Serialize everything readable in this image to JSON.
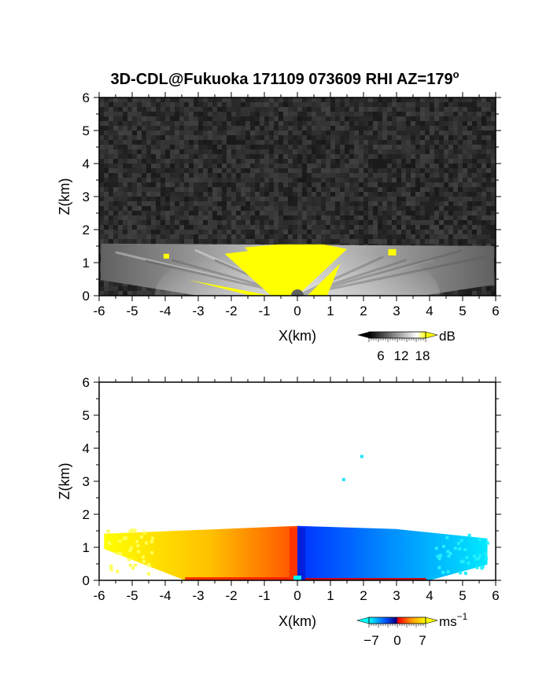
{
  "chart_data": [
    {
      "type": "heatmap",
      "title": "3D-CDL@Fukuoka 171109 073609 RHI AZ=179",
      "title_superscript": "o",
      "xlabel": "X(km)",
      "ylabel": "Z(km)",
      "xlim": [
        -6,
        6
      ],
      "ylim": [
        0,
        6
      ],
      "x_ticks": [
        "-6",
        "-5",
        "-4",
        "-3",
        "-2",
        "-1",
        "0",
        "1",
        "2",
        "3",
        "4",
        "5",
        "6"
      ],
      "y_ticks": [
        "0",
        "1",
        "2",
        "3",
        "4",
        "5",
        "6"
      ],
      "variable": "SNR",
      "scan_top_km": 1.6,
      "background": "noise",
      "saturated_region": {
        "x_range": [
          -2,
          1.5
        ],
        "z_range": [
          0,
          1.6
        ],
        "color": "#ffff00"
      },
      "colorbar": {
        "unit": "dB",
        "tick_labels": [
          "6",
          "12",
          "18"
        ],
        "range": [
          0,
          20
        ],
        "colors": [
          "#000000",
          "#ffffff",
          "#ffff00"
        ]
      }
    },
    {
      "type": "heatmap",
      "title": "",
      "xlabel": "X(km)",
      "ylabel": "Z(km)",
      "xlim": [
        -6,
        6
      ],
      "ylim": [
        0,
        6
      ],
      "x_ticks": [
        "-6",
        "-5",
        "-4",
        "-3",
        "-2",
        "-1",
        "0",
        "1",
        "2",
        "3",
        "4",
        "5",
        "6"
      ],
      "y_ticks": [
        "0",
        "1",
        "2",
        "3",
        "4",
        "5",
        "6"
      ],
      "variable": "Doppler velocity",
      "scan_top_km": 1.6,
      "value_left_of_origin": 5,
      "value_right_of_origin": -5,
      "isolated_points_km": [
        [
          1.95,
          3.75
        ],
        [
          1.4,
          3.05
        ]
      ],
      "colorbar": {
        "unit": "ms",
        "unit_exponent": "−1",
        "tick_labels": [
          "−7",
          "0",
          "7"
        ],
        "range": [
          -7,
          7
        ],
        "colors": [
          "#00ffff",
          "#0044ff",
          "#000088",
          "#ff0000",
          "#ff9900",
          "#ffff00"
        ]
      }
    }
  ]
}
